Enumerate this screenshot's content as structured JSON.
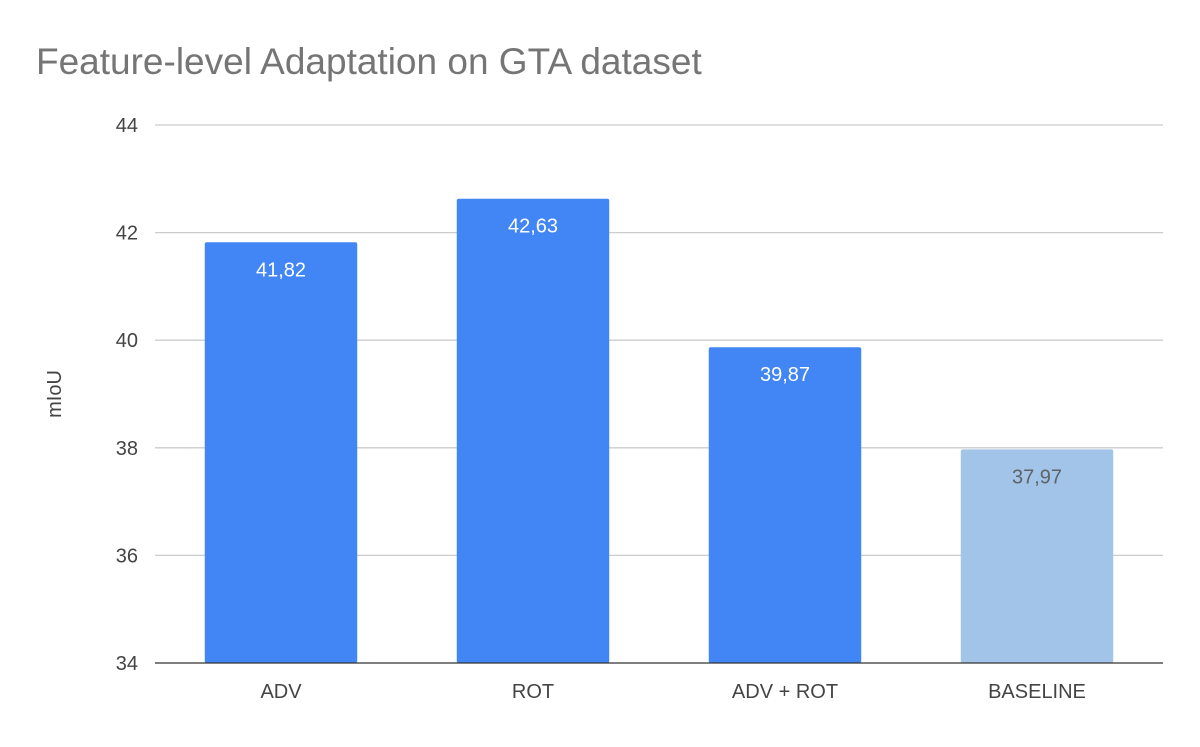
{
  "chart_data": {
    "type": "bar",
    "title": "Feature-level Adaptation on  GTA dataset",
    "xlabel": "",
    "ylabel": "mIoU",
    "categories": [
      "ADV",
      "ROT",
      "ADV + ROT",
      "BASELINE"
    ],
    "values": [
      41.82,
      42.63,
      39.87,
      37.97
    ],
    "data_labels": [
      "41,82",
      "42,63",
      "39,87",
      "37,97"
    ],
    "ylim": [
      34,
      44
    ],
    "yticks": [
      34,
      36,
      38,
      40,
      42,
      44
    ],
    "ytick_labels": [
      "34",
      "36",
      "38",
      "40",
      "42",
      "44"
    ],
    "grid": true,
    "legend": "none",
    "colors": {
      "bars": [
        "#4285f4",
        "#4285f4",
        "#4285f4",
        "#a1c4e8"
      ],
      "data_label_text": [
        "#ffffff",
        "#ffffff",
        "#ffffff",
        "#5f6368"
      ],
      "gridline": "#cccccc",
      "baseline_axis": "#333333",
      "title": "#757575",
      "axis_text": "#444444"
    }
  }
}
